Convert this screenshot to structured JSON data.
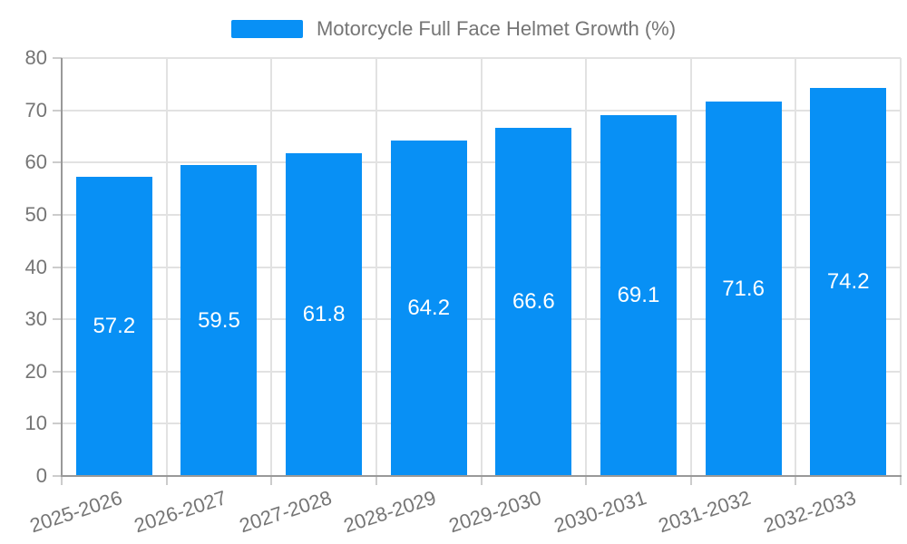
{
  "chart_data": {
    "type": "bar",
    "title": "Motorcycle Full Face Helmet Growth (%)",
    "series_name": "Motorcycle Full Face Helmet Growth (%)",
    "categories": [
      "2025-2026",
      "2026-2027",
      "2027-2028",
      "2028-2029",
      "2029-2030",
      "2030-2031",
      "2031-2032",
      "2032-2033"
    ],
    "values": [
      57.2,
      59.5,
      61.8,
      64.2,
      66.6,
      69.1,
      71.6,
      74.2
    ],
    "value_labels": [
      "57.2",
      "59.5",
      "61.8",
      "64.2",
      "66.6",
      "69.1",
      "71.6",
      "74.2"
    ],
    "xlabel": "",
    "ylabel": "",
    "ylim": [
      0,
      80
    ],
    "yticks": [
      0,
      10,
      20,
      30,
      40,
      50,
      60,
      70,
      80
    ],
    "ytick_labels": [
      "0",
      "10",
      "20",
      "30",
      "40",
      "50",
      "60",
      "70",
      "80"
    ],
    "grid": true,
    "legend_position": "top",
    "x_label_rotation": -18,
    "colors": {
      "bar": "#0890f5",
      "value_label": "#ffffff",
      "axis": "#999999",
      "tick": "#cccccc",
      "grid": "#e2e2e2",
      "tick_label": "#757575",
      "legend_label": "#757575",
      "background": "#ffffff"
    }
  }
}
